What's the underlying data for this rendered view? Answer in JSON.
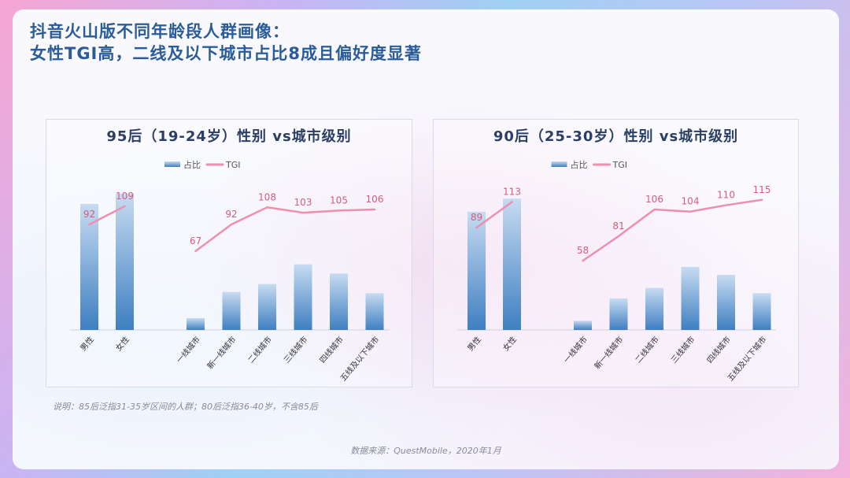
{
  "header": {
    "title_line1": "抖音火山版不同年龄段人群画像：",
    "title_line2": "女性TGI高，二线及以下城市占比8成且偏好度显著"
  },
  "colors": {
    "title": "#2a5c9a",
    "bar_top": "#c7dbf1",
    "bar_bottom": "#3f7fc1",
    "line": "#ee8fae",
    "line_label": "#d55d7e"
  },
  "chart_data": [
    {
      "type": "bar",
      "title": "95后（19-24岁）性别 vs城市级别",
      "legend": [
        "占比",
        "TGI"
      ],
      "legend_position": "top-center",
      "categories": [
        "男性",
        "女性",
        "一线城市",
        "新一线城市",
        "二线城市",
        "三线城市",
        "四线城市",
        "五线及以下城市"
      ],
      "series": [
        {
          "name": "占比",
          "kind": "bar",
          "values": [
            48,
            52,
            4.5,
            14.5,
            17.5,
            25,
            21.5,
            14
          ]
        },
        {
          "name": "TGI",
          "kind": "line",
          "values": [
            92,
            109,
            67,
            92,
            108,
            103,
            105,
            106
          ]
        }
      ],
      "groups": [
        [
          "男性",
          "女性"
        ],
        [
          "一线城市",
          "新一线城市",
          "二线城市",
          "三线城市",
          "四线城市",
          "五线及以下城市"
        ]
      ],
      "ylim_bar": [
        0,
        60
      ],
      "ylim_line": [
        0,
        120
      ],
      "grid": false
    },
    {
      "type": "bar",
      "title": "90后（25-30岁）性别 vs城市级别",
      "legend": [
        "占比",
        "TGI"
      ],
      "legend_position": "top-center",
      "categories": [
        "男性",
        "女性",
        "一线城市",
        "新一线城市",
        "二线城市",
        "三线城市",
        "四线城市",
        "五线及以下城市"
      ],
      "series": [
        {
          "name": "占比",
          "kind": "bar",
          "values": [
            45,
            50,
            3.5,
            12,
            16,
            24,
            21,
            14
          ]
        },
        {
          "name": "TGI",
          "kind": "line",
          "values": [
            89,
            113,
            58,
            81,
            106,
            104,
            110,
            115
          ]
        }
      ],
      "groups": [
        [
          "男性",
          "女性"
        ],
        [
          "一线城市",
          "新一线城市",
          "二线城市",
          "三线城市",
          "四线城市",
          "五线及以下城市"
        ]
      ],
      "ylim_bar": [
        0,
        60
      ],
      "ylim_line": [
        0,
        120
      ],
      "grid": false
    }
  ],
  "note": "说明：85后泛指31-35岁区间的人群；80后泛指36-40岁，不含85后",
  "source": "数据来源：QuestMobile，2020年1月"
}
